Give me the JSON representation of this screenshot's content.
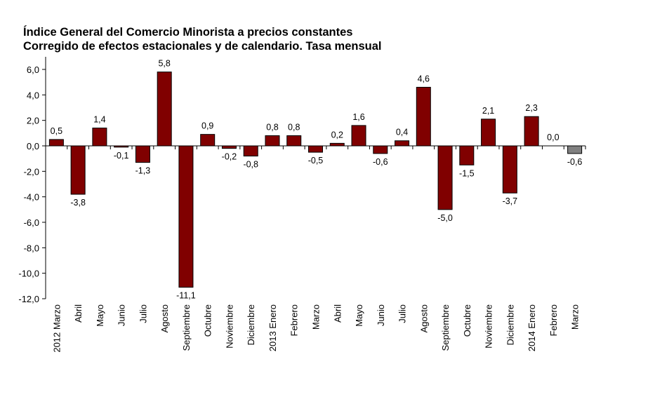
{
  "chart_data": {
    "type": "bar",
    "title": "Índice General del Comercio Minorista a precios constantes",
    "subtitle": "Corregido de efectos estacionales y de calendario. Tasa mensual",
    "xlabel": "",
    "ylabel": "",
    "ylim": [
      -12.0,
      6.0
    ],
    "yticks": [
      "6,0",
      "4,0",
      "2,0",
      "0,0",
      "-2,0",
      "-4,0",
      "-6,0",
      "-8,0",
      "-10,0",
      "-12,0"
    ],
    "ytick_values": [
      6,
      4,
      2,
      0,
      -2,
      -4,
      -6,
      -8,
      -10,
      -12
    ],
    "grid": false,
    "legend": "none",
    "categories": [
      "2012 Marzo",
      "Abril",
      "Mayo",
      "Junio",
      "Julio",
      "Agosto",
      "Septiembre",
      "Octubre",
      "Noviembre",
      "Diciembre",
      "2013 Enero",
      "Febrero",
      "Marzo",
      "Abril",
      "Mayo",
      "Junio",
      "Julio",
      "Agosto",
      "Septiembre",
      "Octubre",
      "Noviembre",
      "Diciembre",
      "2014 Enero",
      "Febrero",
      "Marzo"
    ],
    "values": [
      0.5,
      -3.8,
      1.4,
      -0.1,
      -1.3,
      5.8,
      -11.1,
      0.9,
      -0.2,
      -0.8,
      0.8,
      0.8,
      -0.5,
      0.2,
      1.6,
      -0.6,
      0.4,
      4.6,
      -5.0,
      -1.5,
      2.1,
      -3.7,
      2.3,
      0.0,
      -0.6
    ],
    "data_labels": [
      "0,5",
      "-3,8",
      "1,4",
      "-0,1",
      "-1,3",
      "5,8",
      "-11,1",
      "0,9",
      "-0,2",
      "-0,8",
      "0,8",
      "0,8",
      "-0,5",
      "0,2",
      "1,6",
      "-0,6",
      "0,4",
      "4,6",
      "-5,0",
      "-1,5",
      "2,1",
      "-3,7",
      "2,3",
      "0,0",
      "-0,6"
    ],
    "colors": {
      "bar": "#800000",
      "bar_highlight": "#808080",
      "bar_border": "#000000",
      "axis": "#000000"
    },
    "highlighted_index": 24
  }
}
